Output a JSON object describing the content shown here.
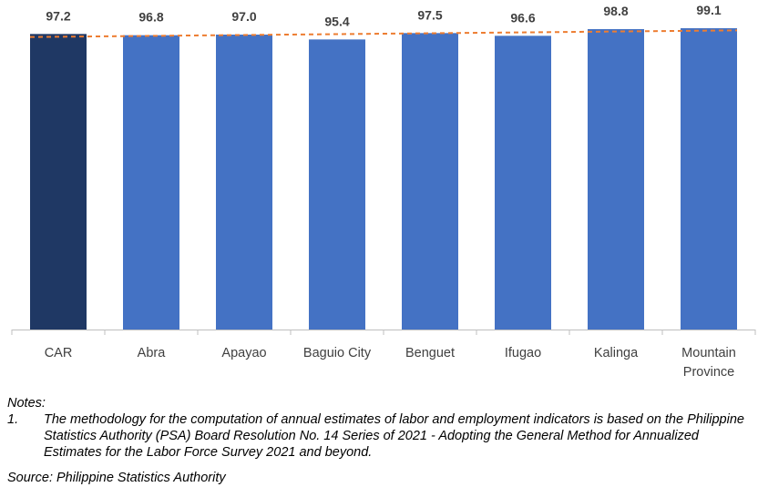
{
  "chart_data": {
    "type": "bar",
    "categories": [
      "CAR",
      "Abra",
      "Apayao",
      "Baguio City",
      "Benguet",
      "Ifugao",
      "Kalinga",
      "Mountain Province"
    ],
    "values": [
      97.2,
      96.8,
      97.0,
      95.4,
      97.5,
      96.6,
      98.8,
      99.1
    ],
    "data_labels": [
      "97.2",
      "96.8",
      "97.0",
      "95.4",
      "97.5",
      "96.6",
      "98.8",
      "99.1"
    ],
    "highlight_index": 0,
    "highlight_color": "#1f3864",
    "bar_color": "#4472c4",
    "trendline": {
      "style": "dashed",
      "color": "#ed7d31"
    },
    "ylim": [
      0,
      99.1
    ],
    "grid": false,
    "title": "",
    "xlabel": "",
    "ylabel": ""
  },
  "notes": {
    "heading": "Notes:",
    "items": [
      {
        "num": "1.",
        "text": "The methodology for the computation of annual estimates of labor and employment indicators is based on the Philippine Statistics Authority (PSA) Board Resolution No. 14 Series of 2021 - Adopting the General Method for Annualized Estimates for the Labor Force Survey 2021 and beyond."
      }
    ]
  },
  "source": "Source: Philippine Statistics Authority"
}
